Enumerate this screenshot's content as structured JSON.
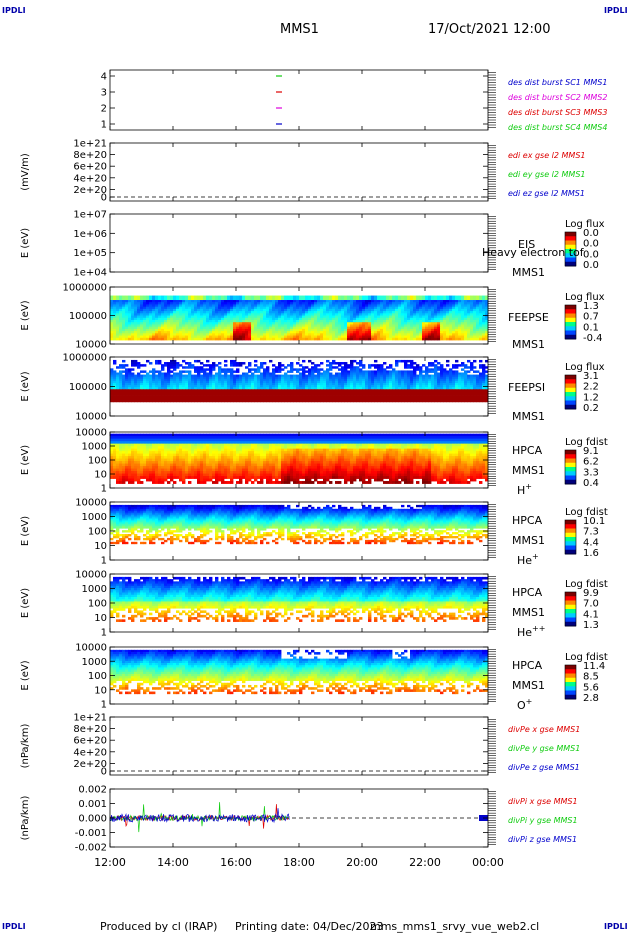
{
  "header": {
    "title": "MMS1",
    "datetime": "17/Oct/2021 12:00",
    "corner_label": "IPDLI"
  },
  "footer": {
    "produced_by": "Produced by cl (IRAP)",
    "printing_date": "Printing date: 04/Dec/2023",
    "filename": "mms_mms1_srvy_vue_web2.cl"
  },
  "colors": {
    "red": "#dd0000",
    "green": "#11cc11",
    "blue": "#0000cc",
    "magenta": "#dd00dd"
  },
  "chart_data": {
    "type": "line",
    "x_ticks": [
      "12:00",
      "14:00",
      "16:00",
      "18:00",
      "20:00",
      "22:00",
      "00:00"
    ],
    "panels": [
      {
        "id": "des_dist",
        "type": "table",
        "ylabel": "",
        "ticks": [
          "4",
          "3",
          "2",
          "1"
        ],
        "legend": [
          {
            "text": "des dist burst SC1 MMS1",
            "color": "#0000cc"
          },
          {
            "text": "des dist burst SC2 MMS2",
            "color": "#dd00dd"
          },
          {
            "text": "des dist burst SC3 MMS3",
            "color": "#dd0000"
          },
          {
            "text": "des dist burst SC4 MMS4",
            "color": "#11cc11"
          }
        ]
      },
      {
        "id": "edi",
        "type": "line",
        "ylabel": "(mV/m)",
        "ticks": [
          "1e+21",
          "8e+20",
          "6e+20",
          "4e+20",
          "2e+20",
          "0"
        ],
        "legend": [
          {
            "text": "edi ex gse l2 MMS1",
            "color": "#dd0000"
          },
          {
            "text": "edi ey gse l2 MMS1",
            "color": "#11cc11"
          },
          {
            "text": "edi ez gse l2 MMS1",
            "color": "#0000cc"
          }
        ]
      },
      {
        "id": "eis",
        "type": "heatmap",
        "ylabel": "E (eV)",
        "ticks": [
          "1e+07",
          "1e+06",
          "1e+05",
          "1e+04"
        ],
        "labels": [
          "EIS",
          "MMS1"
        ],
        "overlay": "Heavy electron tof",
        "cbar_title": "Log flux",
        "cbar_ticks": [
          "0.0",
          "0.0",
          "0.0",
          "0.0"
        ]
      },
      {
        "id": "feeps_e",
        "type": "heatmap",
        "ylabel": "E (eV)",
        "ticks": [
          "1000000",
          "100000",
          "10000"
        ],
        "labels": [
          "FEEPSE",
          "MMS1"
        ],
        "cbar_title": "Log flux",
        "cbar_ticks": [
          "1.3",
          "0.7",
          "0.1",
          "-0.4"
        ]
      },
      {
        "id": "feeps_i",
        "type": "heatmap",
        "ylabel": "E (eV)",
        "ticks": [
          "1000000",
          "100000",
          "10000"
        ],
        "labels": [
          "FEEPSI",
          "MMS1"
        ],
        "cbar_title": "Log flux",
        "cbar_ticks": [
          "3.1",
          "2.2",
          "1.2",
          "0.2"
        ]
      },
      {
        "id": "hpca_h",
        "type": "heatmap",
        "ylabel": "E (eV)",
        "ticks": [
          "10000",
          "1000",
          "100",
          "10",
          "1"
        ],
        "labels": [
          "HPCA",
          "MMS1",
          "H+"
        ],
        "cbar_title": "Log fdist",
        "cbar_ticks": [
          "9.1",
          "6.2",
          "3.3",
          "0.4"
        ]
      },
      {
        "id": "hpca_he",
        "type": "heatmap",
        "ylabel": "E (eV)",
        "ticks": [
          "10000",
          "1000",
          "100",
          "10",
          "1"
        ],
        "labels": [
          "HPCA",
          "MMS1",
          "He+"
        ],
        "cbar_title": "Log fdist",
        "cbar_ticks": [
          "10.1",
          "7.3",
          "4.4",
          "1.6"
        ]
      },
      {
        "id": "hpca_hepp",
        "type": "heatmap",
        "ylabel": "E (eV)",
        "ticks": [
          "10000",
          "1000",
          "100",
          "10",
          "1"
        ],
        "labels": [
          "HPCA",
          "MMS1",
          "He++"
        ],
        "cbar_title": "Log fdist",
        "cbar_ticks": [
          "9.9",
          "7.0",
          "4.1",
          "1.3"
        ]
      },
      {
        "id": "hpca_o",
        "type": "heatmap",
        "ylabel": "E (eV)",
        "ticks": [
          "10000",
          "1000",
          "100",
          "10",
          "1"
        ],
        "labels": [
          "HPCA",
          "MMS1",
          "O+"
        ],
        "cbar_title": "Log fdist",
        "cbar_ticks": [
          "11.4",
          "8.5",
          "5.6",
          "2.8"
        ]
      },
      {
        "id": "divpe",
        "type": "line",
        "ylabel": "(nPa/km)",
        "ticks": [
          "1e+21",
          "8e+20",
          "6e+20",
          "4e+20",
          "2e+20",
          "0"
        ],
        "legend": [
          {
            "text": "divPe x gse MMS1",
            "color": "#dd0000"
          },
          {
            "text": "divPe y gse MMS1",
            "color": "#11cc11"
          },
          {
            "text": "divPe z gse MMS1",
            "color": "#0000cc"
          }
        ]
      },
      {
        "id": "divpi",
        "type": "line",
        "ylabel": "(nPa/km)",
        "ticks": [
          "0.002",
          "0.001",
          "0.000",
          "-0.001",
          "-0.002"
        ],
        "legend": [
          {
            "text": "divPi x gse MMS1",
            "color": "#dd0000"
          },
          {
            "text": "divPi y gse MMS1",
            "color": "#11cc11"
          },
          {
            "text": "divPi z gse MMS1",
            "color": "#0000cc"
          }
        ]
      }
    ]
  }
}
